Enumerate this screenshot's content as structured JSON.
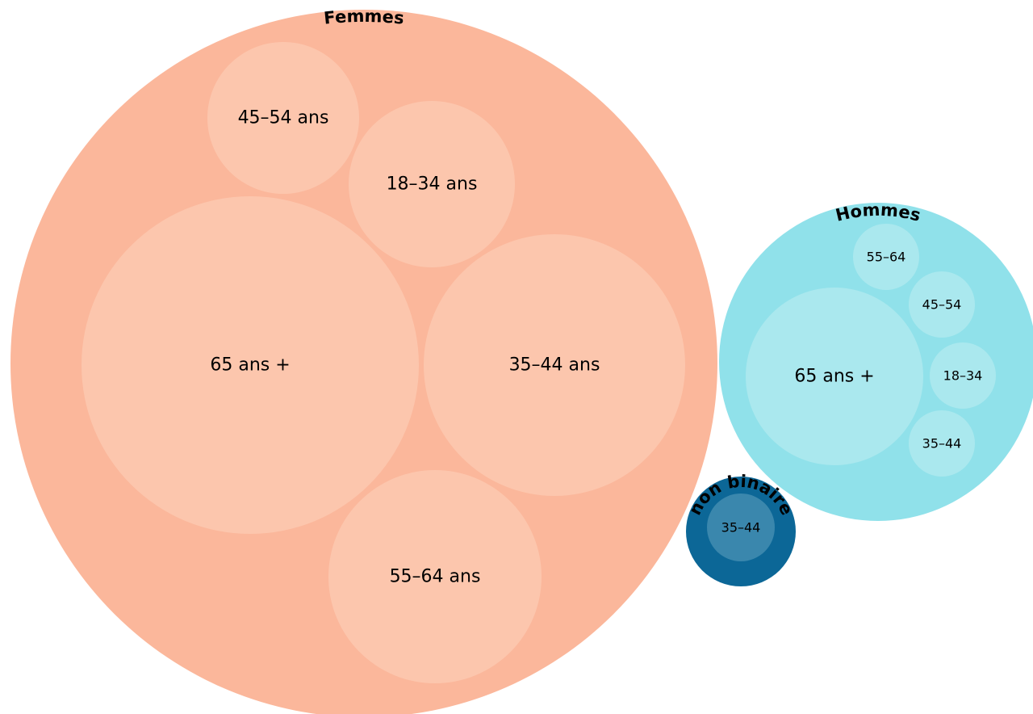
{
  "chart_data": {
    "type": "bubble",
    "groups": [
      {
        "name": "Femmes",
        "color": "#fbb79b",
        "child_color": "#fcc6ad",
        "children": [
          {
            "label": "45–54 ans"
          },
          {
            "label": "18–34 ans"
          },
          {
            "label": "65 ans +"
          },
          {
            "label": "35–44 ans"
          },
          {
            "label": "55–64 ans"
          }
        ]
      },
      {
        "name": "Hommes",
        "color": "#90e1ea",
        "child_color": "#aae8ee",
        "children": [
          {
            "label": "55–64"
          },
          {
            "label": "45–54"
          },
          {
            "label": "65 ans +"
          },
          {
            "label": "18–34"
          },
          {
            "label": "35–44"
          }
        ]
      },
      {
        "name": "non binaire",
        "color": "#0c6797",
        "child_color": "#3a87ad",
        "children": [
          {
            "label": "35–44"
          }
        ]
      }
    ]
  }
}
